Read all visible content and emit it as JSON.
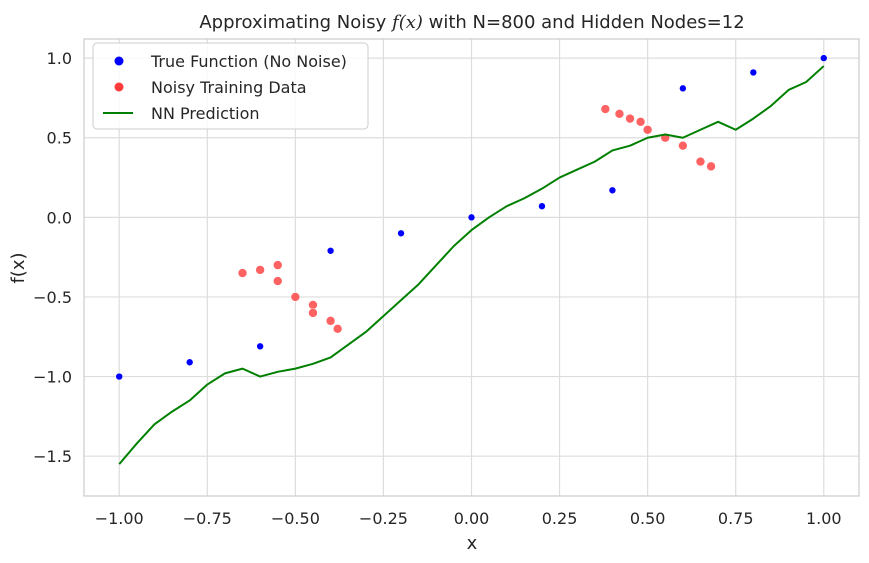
{
  "chart_data": {
    "type": "scatter",
    "title": "Approximating Noisy f(x) with N=800 and Hidden Nodes=12",
    "title_parts": {
      "before": "Approximating Noisy ",
      "math": "f(x)",
      "after": " with N=800 and Hidden Nodes=12"
    },
    "xlabel": "x",
    "ylabel": "f(x)",
    "xlim": [
      -1.1,
      1.1
    ],
    "ylim": [
      -1.75,
      1.12
    ],
    "xticks": [
      -1.0,
      -0.75,
      -0.5,
      -0.25,
      0.0,
      0.25,
      0.5,
      0.75,
      1.0
    ],
    "xtick_labels": [
      "−1.00",
      "−0.75",
      "−0.50",
      "−0.25",
      "0.00",
      "0.25",
      "0.50",
      "0.75",
      "1.00"
    ],
    "yticks": [
      -1.5,
      -1.0,
      -0.5,
      0.0,
      0.5,
      1.0
    ],
    "ytick_labels": [
      "−1.5",
      "−1.0",
      "−0.5",
      "0.0",
      "0.5",
      "1.0"
    ],
    "grid": true,
    "legend_position": "top-left",
    "legend": [
      {
        "name": "True Function (No Noise)",
        "marker": "dot",
        "color": "#0000ff"
      },
      {
        "name": "Noisy Training Data",
        "marker": "dot",
        "color": "#ff3b3b"
      },
      {
        "name": "NN Prediction",
        "marker": "line",
        "color": "#008000"
      }
    ],
    "series": [
      {
        "name": "True Function (No Noise)",
        "kind": "scatter",
        "color": "#0000ff",
        "x": [
          -1.0,
          -0.8,
          -0.6,
          -0.4,
          -0.2,
          0.0,
          0.2,
          0.4,
          0.6,
          0.8,
          1.0
        ],
        "y": [
          -1.0,
          -0.91,
          -0.81,
          -0.21,
          -0.1,
          0.0,
          0.07,
          0.17,
          0.81,
          0.91,
          1.0
        ]
      },
      {
        "name": "Noisy Training Data",
        "kind": "scatter",
        "color": "#ff3b3b",
        "x": [
          -0.65,
          -0.6,
          -0.55,
          -0.5,
          -0.45,
          -0.4,
          -0.38,
          -0.55,
          -0.45,
          0.38,
          0.42,
          0.48,
          0.55,
          0.6,
          0.65,
          0.68,
          0.5,
          0.45
        ],
        "y": [
          -0.35,
          -0.33,
          -0.4,
          -0.5,
          -0.55,
          -0.65,
          -0.7,
          -0.3,
          -0.6,
          0.68,
          0.65,
          0.6,
          0.5,
          0.45,
          0.35,
          0.32,
          0.55,
          0.62
        ]
      },
      {
        "name": "NN Prediction",
        "kind": "line",
        "color": "#008000",
        "x": [
          -1.0,
          -0.95,
          -0.9,
          -0.85,
          -0.8,
          -0.75,
          -0.7,
          -0.65,
          -0.6,
          -0.55,
          -0.5,
          -0.45,
          -0.4,
          -0.35,
          -0.3,
          -0.25,
          -0.2,
          -0.15,
          -0.1,
          -0.05,
          0.0,
          0.05,
          0.1,
          0.15,
          0.2,
          0.25,
          0.3,
          0.35,
          0.4,
          0.45,
          0.5,
          0.55,
          0.6,
          0.65,
          0.7,
          0.75,
          0.8,
          0.85,
          0.9,
          0.95,
          1.0
        ],
        "y": [
          -1.55,
          -1.42,
          -1.3,
          -1.22,
          -1.15,
          -1.05,
          -0.98,
          -0.95,
          -1.0,
          -0.97,
          -0.95,
          -0.92,
          -0.88,
          -0.8,
          -0.72,
          -0.62,
          -0.52,
          -0.42,
          -0.3,
          -0.18,
          -0.08,
          0.0,
          0.07,
          0.12,
          0.18,
          0.25,
          0.3,
          0.35,
          0.42,
          0.45,
          0.5,
          0.52,
          0.5,
          0.55,
          0.6,
          0.55,
          0.62,
          0.7,
          0.8,
          0.85,
          0.95
        ]
      }
    ]
  }
}
